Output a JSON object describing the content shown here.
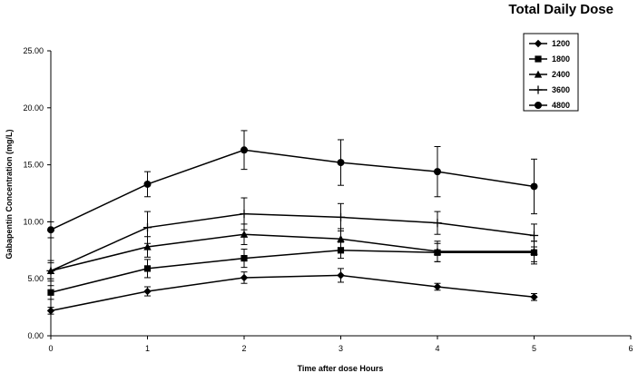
{
  "chart_data": {
    "type": "line",
    "title": "Total Daily Dose",
    "xlabel": "Time after dose Hours",
    "ylabel": "Gabapentin Concentration (mg/L)",
    "xlim": [
      0,
      6
    ],
    "ylim": [
      0,
      25
    ],
    "x_ticks": [
      "0",
      "1",
      "2",
      "3",
      "4",
      "5",
      "6"
    ],
    "y_ticks": [
      "0.00",
      "5.00",
      "10.00",
      "15.00",
      "20.00",
      "25.00"
    ],
    "grid": false,
    "legend_position": "top-right",
    "x": [
      0,
      1,
      2,
      3,
      4,
      5
    ],
    "series": [
      {
        "name": "1200",
        "marker": "diamond",
        "values": [
          2.2,
          3.9,
          5.1,
          5.3,
          4.3,
          3.4
        ],
        "errors": [
          0.3,
          0.4,
          0.5,
          0.6,
          0.3,
          0.3
        ]
      },
      {
        "name": "1800",
        "marker": "square",
        "values": [
          3.8,
          5.9,
          6.8,
          7.5,
          7.3,
          7.3
        ],
        "errors": [
          0.6,
          0.8,
          0.8,
          0.7,
          0.8,
          1.0
        ]
      },
      {
        "name": "2400",
        "marker": "triangle",
        "values": [
          5.7,
          7.8,
          8.9,
          8.5,
          7.4,
          7.4
        ],
        "errors": [
          0.7,
          0.9,
          0.9,
          0.9,
          0.9,
          0.9
        ]
      },
      {
        "name": "3600",
        "marker": "plus",
        "values": [
          5.7,
          9.5,
          10.7,
          10.4,
          9.9,
          8.8
        ],
        "errors": [
          0.9,
          1.4,
          1.4,
          1.2,
          1.0,
          1.0
        ]
      },
      {
        "name": "4800",
        "marker": "circle",
        "values": [
          9.3,
          13.3,
          16.3,
          15.2,
          14.4,
          13.1
        ],
        "errors": [
          0.7,
          1.1,
          1.7,
          2.0,
          2.2,
          2.4
        ]
      }
    ]
  }
}
